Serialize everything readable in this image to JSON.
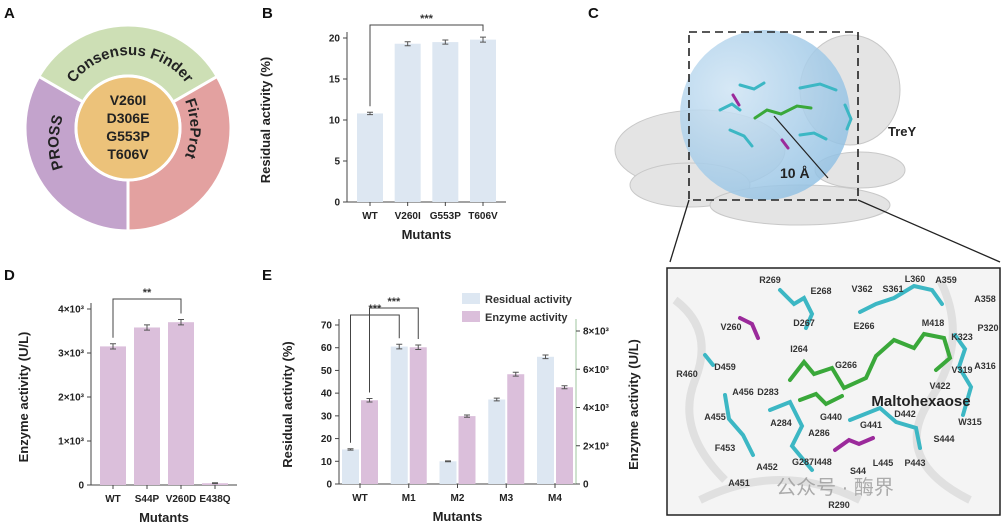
{
  "panels": {
    "a": "A",
    "b": "B",
    "c": "C",
    "d": "D",
    "e": "E"
  },
  "panel_a": {
    "center_lines": [
      "V260I",
      "D306E",
      "G553P",
      "T606V"
    ],
    "segments": [
      {
        "label": "Consensus Finder",
        "color": "#cddfb5"
      },
      {
        "label": "FireProt",
        "color": "#e3a1a0"
      },
      {
        "label": "PROSS",
        "color": "#c3a3cc"
      }
    ],
    "center_color": "#ecc27a"
  },
  "panel_c": {
    "protein_label": "TreY",
    "radius_label": "10 Å",
    "ligand_label": "Maltohexaose",
    "residues": [
      {
        "name": "R269",
        "mutated": false
      },
      {
        "name": "E268",
        "mutated": false
      },
      {
        "name": "V362",
        "mutated": false
      },
      {
        "name": "S361",
        "mutated": false
      },
      {
        "name": "L360",
        "mutated": false
      },
      {
        "name": "A359",
        "mutated": false
      },
      {
        "name": "A358",
        "mutated": false
      },
      {
        "name": "V260",
        "mutated": true
      },
      {
        "name": "D267",
        "mutated": false
      },
      {
        "name": "M418",
        "mutated": false
      },
      {
        "name": "P320",
        "mutated": false
      },
      {
        "name": "E266",
        "mutated": false
      },
      {
        "name": "K323",
        "mutated": false
      },
      {
        "name": "I264",
        "mutated": false
      },
      {
        "name": "R460",
        "mutated": false
      },
      {
        "name": "D459",
        "mutated": false
      },
      {
        "name": "G266",
        "mutated": false
      },
      {
        "name": "V319",
        "mutated": false
      },
      {
        "name": "A316",
        "mutated": false
      },
      {
        "name": "V422",
        "mutated": false
      },
      {
        "name": "A456",
        "mutated": false
      },
      {
        "name": "D283",
        "mutated": false
      },
      {
        "name": "A455",
        "mutated": false
      },
      {
        "name": "G440",
        "mutated": false
      },
      {
        "name": "D442",
        "mutated": false
      },
      {
        "name": "G441",
        "mutated": false
      },
      {
        "name": "W315",
        "mutated": false
      },
      {
        "name": "A284",
        "mutated": false
      },
      {
        "name": "A286",
        "mutated": false
      },
      {
        "name": "S444",
        "mutated": false
      },
      {
        "name": "F453",
        "mutated": false
      },
      {
        "name": "G287",
        "mutated": false
      },
      {
        "name": "I448",
        "mutated": false
      },
      {
        "name": "L445",
        "mutated": false
      },
      {
        "name": "P443",
        "mutated": false
      },
      {
        "name": "A452",
        "mutated": false
      },
      {
        "name": "S44",
        "mutated": true
      },
      {
        "name": "A451",
        "mutated": false
      },
      {
        "name": "R290",
        "mutated": false
      }
    ],
    "watermark": "公众号 · 酶界",
    "colors": {
      "sphere": "#a9cde8",
      "residue": "#3cb7c4",
      "mutated": "#9b2a9b",
      "ligand": "#3aa83a",
      "mutated_label": "#e02020"
    }
  },
  "chart_data": [
    {
      "panel": "B",
      "type": "bar",
      "categories": [
        "WT",
        "V260I",
        "G553P",
        "T606V"
      ],
      "values": [
        10.8,
        19.3,
        19.5,
        19.8
      ],
      "errors": [
        0.15,
        0.25,
        0.25,
        0.3
      ],
      "xlabel": "Mutants",
      "ylabel": "Residual activity (%)",
      "ylim": [
        0,
        20
      ],
      "yticks": [
        "0",
        "5",
        "10",
        "15",
        "20"
      ],
      "significance": [
        {
          "from": "WT",
          "to": "T606V",
          "label": "***"
        }
      ],
      "color": "#dde7f2"
    },
    {
      "panel": "D",
      "type": "bar",
      "categories": [
        "WT",
        "S44P",
        "V260D",
        "E438Q"
      ],
      "values": [
        3150,
        3580,
        3700,
        40
      ],
      "errors": [
        60,
        60,
        60,
        10
      ],
      "xlabel": "Mutants",
      "ylabel": "Enzyme activity (U/L)",
      "ylim": [
        0,
        4000
      ],
      "yticks": [
        "0",
        "1×10³",
        "2×10³",
        "3×10³",
        "4×10³"
      ],
      "significance": [
        {
          "from": "WT",
          "to": "V260D",
          "label": "**"
        }
      ],
      "color": "#dbbfdb"
    },
    {
      "panel": "E",
      "type": "bar",
      "categories": [
        "WT",
        "M1",
        "M2",
        "M3",
        "M4"
      ],
      "series": [
        {
          "name": "Residual activity",
          "axis": "left",
          "values": [
            15.2,
            60.5,
            10.0,
            37.2,
            56.0
          ],
          "errors": [
            0.3,
            1.0,
            0.2,
            0.6,
            0.8
          ],
          "color": "#dde7f2"
        },
        {
          "name": "Enzyme activity",
          "axis": "right",
          "values": [
            4380,
            7150,
            3550,
            5740,
            5060
          ],
          "errors": [
            90,
            120,
            60,
            100,
            80
          ],
          "color": "#dbbfdb"
        }
      ],
      "xlabel": "Mutants",
      "ylabel": "Residual activity (%)",
      "ylabel_right": "Enzyme activity (U/L)",
      "ylim": [
        0,
        70
      ],
      "ylim_right": [
        0,
        8000
      ],
      "yticks": [
        "0",
        "10",
        "20",
        "30",
        "40",
        "50",
        "60",
        "70"
      ],
      "yticks_right": [
        "0",
        "2×10³",
        "4×10³",
        "6×10³",
        "8×10³"
      ],
      "legend": "top-right",
      "significance": [
        {
          "from": "WT",
          "to": "M1",
          "series": "Residual activity",
          "label": "***"
        },
        {
          "from": "WT",
          "to": "M1",
          "series": "Enzyme activity",
          "label": "***"
        }
      ]
    }
  ]
}
